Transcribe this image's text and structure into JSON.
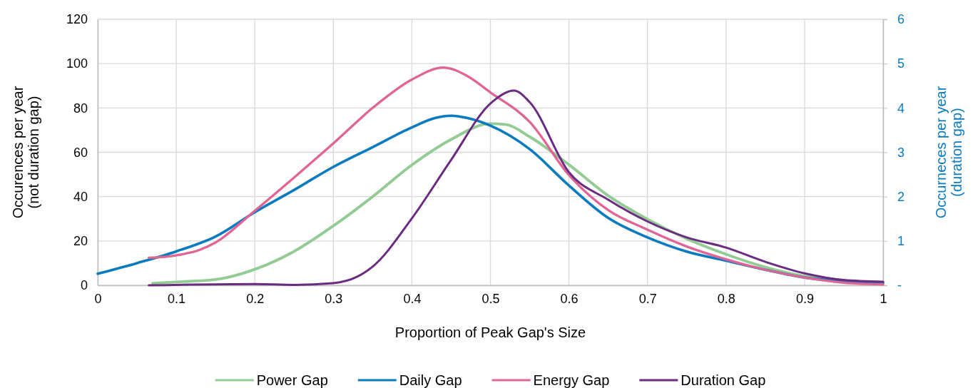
{
  "chart_data": {
    "type": "line",
    "xlabel": "Proportion of Peak Gap's Size",
    "ylabel": "Occurences per year\n(not duration gap)",
    "y2label": "Occurneces per year\n(duration gap)",
    "xlim": [
      0,
      1
    ],
    "xticks": [
      0,
      0.1,
      0.2,
      0.3,
      0.4,
      0.5,
      0.6,
      0.7,
      0.8,
      0.9,
      1
    ],
    "ylim": [
      0,
      120
    ],
    "yticks": [
      0,
      20,
      40,
      60,
      80,
      100,
      120
    ],
    "y2lim": [
      0,
      6
    ],
    "y2ticks": [
      {
        "value": 0,
        "label": "-"
      },
      1,
      2,
      3,
      4,
      5,
      6
    ],
    "grid": true,
    "legend": "bottom",
    "marker": "none",
    "line_style": "solid",
    "series": [
      {
        "name": "Power Gap",
        "color": "#92cc94",
        "x": [
          0.07,
          0.1,
          0.15,
          0.2,
          0.25,
          0.3,
          0.35,
          0.4,
          0.45,
          0.5,
          0.52,
          0.55,
          0.6,
          0.65,
          0.7,
          0.75,
          0.8,
          0.85,
          0.9,
          0.95,
          1
        ],
        "values": [
          0.9,
          1.5,
          2.6,
          7.2,
          15.3,
          26.8,
          40,
          54.3,
          65.8,
          72.9,
          72.5,
          67,
          54.4,
          40.4,
          29.8,
          21,
          14,
          8.2,
          4.1,
          1.8,
          0.8
        ]
      },
      {
        "name": "Daily Gap",
        "color": "#0a7bbf",
        "x": [
          0,
          0.05,
          0.1,
          0.15,
          0.2,
          0.25,
          0.3,
          0.35,
          0.4,
          0.43,
          0.45,
          0.47,
          0.5,
          0.55,
          0.6,
          0.65,
          0.7,
          0.75,
          0.8,
          0.85,
          0.9,
          0.95,
          1
        ],
        "values": [
          5.2,
          10,
          15.3,
          22,
          33,
          43,
          53.4,
          62.3,
          71.2,
          75.5,
          76.5,
          75.5,
          72,
          61.4,
          45,
          30.4,
          21.6,
          15.2,
          11.1,
          7,
          3.5,
          1.8,
          1.2
        ]
      },
      {
        "name": "Energy Gap",
        "color": "#e06494",
        "x": [
          0.065,
          0.1,
          0.13,
          0.15,
          0.2,
          0.25,
          0.3,
          0.35,
          0.4,
          0.44,
          0.47,
          0.5,
          0.55,
          0.6,
          0.65,
          0.7,
          0.75,
          0.8,
          0.85,
          0.9,
          0.95,
          1
        ],
        "values": [
          12.4,
          13.5,
          16,
          19.3,
          33.6,
          48.6,
          64,
          80,
          92.8,
          98.2,
          94.5,
          87,
          73.7,
          49.7,
          33.9,
          25.1,
          17.5,
          11.7,
          7,
          3.5,
          1.2,
          0.4
        ]
      },
      {
        "name": "Duration Gap",
        "color": "#6a2c80",
        "axis": "y2",
        "x": [
          0.065,
          0.2,
          0.25,
          0.3,
          0.33,
          0.35,
          0.4,
          0.45,
          0.5,
          0.53,
          0.55,
          0.6,
          0.65,
          0.7,
          0.75,
          0.8,
          0.85,
          0.9,
          0.95,
          1
        ],
        "values": [
          0,
          0.03,
          0.01,
          0.05,
          0.19,
          0.42,
          1.51,
          2.83,
          4.1,
          4.39,
          4.13,
          2.55,
          1.93,
          1.44,
          1.08,
          0.85,
          0.53,
          0.27,
          0.12,
          0.08
        ]
      }
    ]
  }
}
